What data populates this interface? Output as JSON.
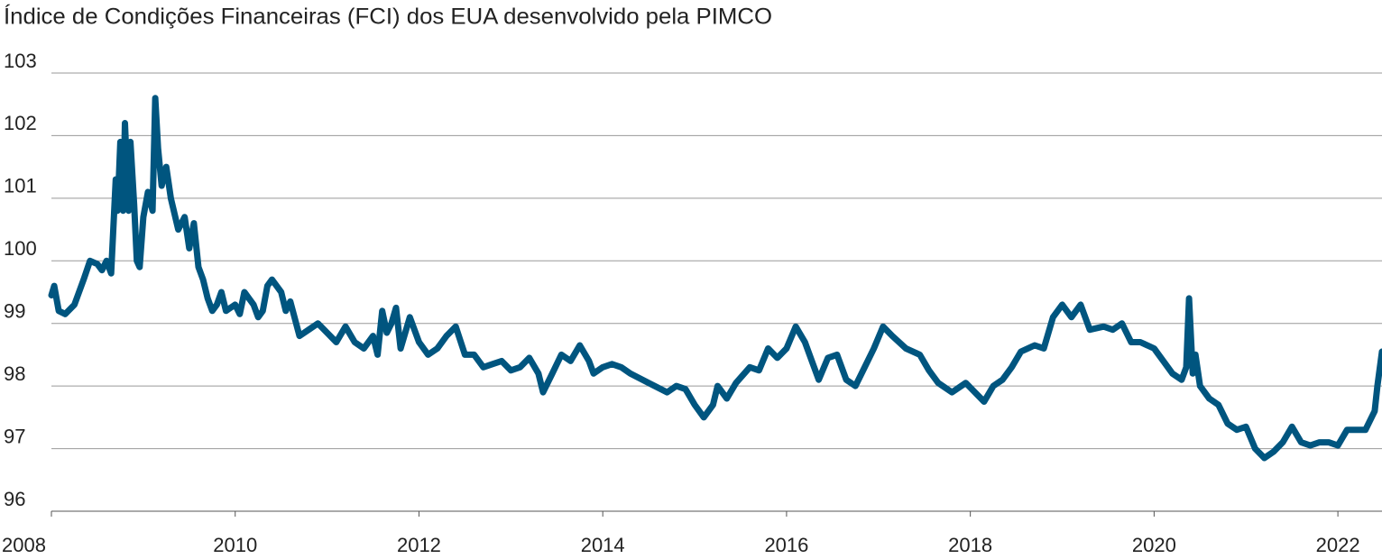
{
  "chart_data": {
    "type": "line",
    "title": "Índice de Condições Financeiras (FCI) dos EUA desenvolvido pela PIMCO",
    "series": [
      {
        "color": "#00557f",
        "x": [
          2008.0,
          2008.03,
          2008.08,
          2008.15,
          2008.25,
          2008.35,
          2008.42,
          2008.5,
          2008.55,
          2008.6,
          2008.65,
          2008.7,
          2008.72,
          2008.75,
          2008.78,
          2008.8,
          2008.84,
          2008.86,
          2008.9,
          2008.93,
          2008.96,
          2009.0,
          2009.05,
          2009.1,
          2009.13,
          2009.16,
          2009.2,
          2009.25,
          2009.3,
          2009.38,
          2009.45,
          2009.5,
          2009.55,
          2009.6,
          2009.65,
          2009.7,
          2009.75,
          2009.8,
          2009.85,
          2009.9,
          2010.0,
          2010.05,
          2010.1,
          2010.2,
          2010.25,
          2010.3,
          2010.35,
          2010.4,
          2010.5,
          2010.55,
          2010.6,
          2010.7,
          2010.8,
          2010.9,
          2011.0,
          2011.1,
          2011.2,
          2011.3,
          2011.4,
          2011.5,
          2011.55,
          2011.6,
          2011.65,
          2011.7,
          2011.75,
          2011.8,
          2011.9,
          2012.0,
          2012.1,
          2012.2,
          2012.3,
          2012.4,
          2012.5,
          2012.6,
          2012.7,
          2012.8,
          2012.9,
          2013.0,
          2013.1,
          2013.2,
          2013.3,
          2013.35,
          2013.45,
          2013.55,
          2013.65,
          2013.75,
          2013.85,
          2013.9,
          2014.0,
          2014.1,
          2014.2,
          2014.3,
          2014.5,
          2014.7,
          2014.8,
          2014.9,
          2015.0,
          2015.1,
          2015.2,
          2015.25,
          2015.35,
          2015.45,
          2015.6,
          2015.7,
          2015.8,
          2015.9,
          2016.0,
          2016.1,
          2016.2,
          2016.3,
          2016.35,
          2016.45,
          2016.55,
          2016.65,
          2016.75,
          2016.85,
          2016.95,
          2017.05,
          2017.15,
          2017.3,
          2017.45,
          2017.55,
          2017.65,
          2017.8,
          2017.95,
          2018.05,
          2018.15,
          2018.25,
          2018.35,
          2018.45,
          2018.55,
          2018.7,
          2018.8,
          2018.9,
          2019.0,
          2019.1,
          2019.2,
          2019.3,
          2019.45,
          2019.55,
          2019.65,
          2019.75,
          2019.85,
          2020.0,
          2020.1,
          2020.2,
          2020.3,
          2020.35,
          2020.38,
          2020.42,
          2020.45,
          2020.5,
          2020.6,
          2020.7,
          2020.8,
          2020.9,
          2021.0,
          2021.1,
          2021.2,
          2021.3,
          2021.4,
          2021.5,
          2021.6,
          2021.7,
          2021.8,
          2021.9,
          2022.0,
          2022.1,
          2022.2,
          2022.3,
          2022.4,
          2022.43,
          2022.48
        ],
        "values": [
          99.45,
          99.6,
          99.2,
          99.15,
          99.3,
          99.7,
          100.0,
          99.95,
          99.85,
          100.0,
          99.8,
          101.3,
          100.8,
          101.9,
          100.8,
          102.2,
          100.8,
          101.9,
          100.9,
          100.0,
          99.9,
          100.7,
          101.1,
          100.8,
          102.6,
          101.8,
          101.2,
          101.5,
          101.0,
          100.5,
          100.7,
          100.2,
          100.6,
          99.9,
          99.7,
          99.4,
          99.2,
          99.3,
          99.5,
          99.2,
          99.3,
          99.15,
          99.5,
          99.3,
          99.1,
          99.2,
          99.6,
          99.7,
          99.5,
          99.2,
          99.35,
          98.8,
          98.9,
          99.0,
          98.85,
          98.7,
          98.95,
          98.7,
          98.6,
          98.8,
          98.5,
          99.2,
          98.85,
          99.0,
          99.25,
          98.6,
          99.1,
          98.7,
          98.5,
          98.6,
          98.8,
          98.95,
          98.5,
          98.5,
          98.3,
          98.35,
          98.4,
          98.25,
          98.3,
          98.45,
          98.2,
          97.9,
          98.2,
          98.5,
          98.4,
          98.65,
          98.4,
          98.2,
          98.3,
          98.35,
          98.3,
          98.2,
          98.05,
          97.9,
          98.0,
          97.95,
          97.7,
          97.5,
          97.7,
          98.0,
          97.8,
          98.05,
          98.3,
          98.25,
          98.6,
          98.45,
          98.6,
          98.95,
          98.7,
          98.3,
          98.1,
          98.45,
          98.5,
          98.1,
          98.0,
          98.3,
          98.6,
          98.95,
          98.8,
          98.6,
          98.5,
          98.25,
          98.05,
          97.9,
          98.05,
          97.9,
          97.75,
          98.0,
          98.1,
          98.3,
          98.55,
          98.65,
          98.6,
          99.1,
          99.3,
          99.1,
          99.3,
          98.9,
          98.95,
          98.9,
          99.0,
          98.7,
          98.7,
          98.6,
          98.4,
          98.2,
          98.1,
          98.3,
          99.4,
          98.2,
          98.5,
          98.0,
          97.8,
          97.7,
          97.4,
          97.3,
          97.35,
          97.0,
          96.85,
          96.95,
          97.1,
          97.35,
          97.1,
          97.05,
          97.1,
          97.1,
          97.05,
          97.3,
          97.3,
          97.3,
          97.6,
          98.0,
          98.55
        ]
      }
    ],
    "xlim": [
      2008,
      2022.48
    ],
    "xticks": [
      2008,
      2010,
      2012,
      2014,
      2016,
      2018,
      2020,
      2022
    ],
    "ylim": [
      96,
      103
    ],
    "yticks": [
      96,
      97,
      98,
      99,
      100,
      101,
      102,
      103
    ],
    "grid": true
  }
}
